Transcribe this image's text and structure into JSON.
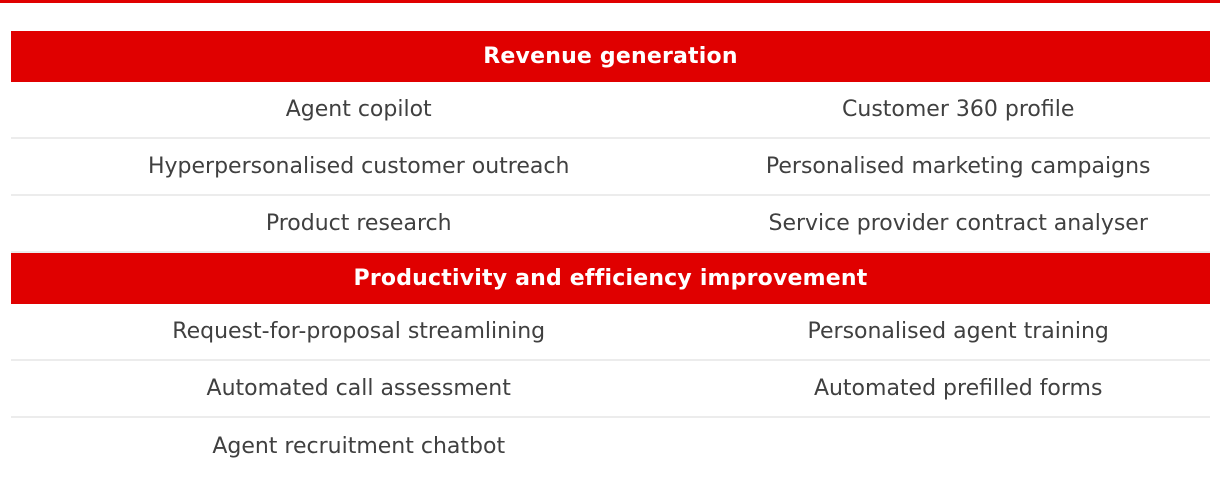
{
  "theme": {
    "accent_color": "#e00000",
    "text_color": "#404040",
    "divider_color": "#ececec",
    "bg_color": "#ffffff"
  },
  "table": {
    "sections": [
      {
        "header": "Revenue generation",
        "rows": [
          [
            "Agent copilot",
            "Customer 360 profile"
          ],
          [
            "Hyperpersonalised customer outreach",
            "Personalised marketing campaigns"
          ],
          [
            "Product research",
            "Service provider contract analyser"
          ]
        ]
      },
      {
        "header": "Productivity and efficiency improvement",
        "rows": [
          [
            "Request-for-proposal streamlining",
            "Personalised agent training"
          ],
          [
            "Automated call assessment",
            "Automated prefilled forms"
          ],
          [
            "Agent recruitment chatbot",
            ""
          ]
        ]
      }
    ]
  }
}
